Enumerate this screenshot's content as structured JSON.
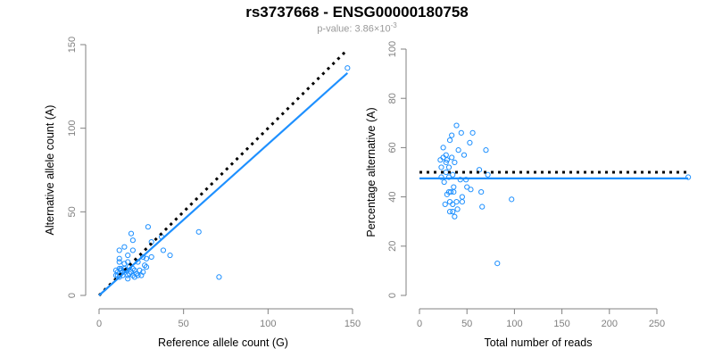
{
  "title": "rs3737668 - ENSG00000180758",
  "subtitle": {
    "prefix": "p-value: 3.86×10",
    "exponent": "-3"
  },
  "colors": {
    "points": "#1E90FF",
    "fit_line": "#1E90FF",
    "reference_line": "#000000",
    "axis": "#808080"
  },
  "chart_data": [
    {
      "type": "scatter",
      "xlabel": "Reference allele count (G)",
      "ylabel": "Alternative allele count (A)",
      "xlim": [
        0,
        150
      ],
      "ylim": [
        0,
        150
      ],
      "xticks": [
        0,
        50,
        100,
        150
      ],
      "yticks": [
        0,
        50,
        100,
        150
      ],
      "reference_line": {
        "style": "dotted",
        "slope": 1,
        "intercept": 0,
        "x_range": [
          0,
          147
        ]
      },
      "fit_line": {
        "slope": 0.905,
        "intercept": 0,
        "x_range": [
          0,
          147
        ]
      },
      "points": [
        [
          29,
          41
        ],
        [
          19,
          37
        ],
        [
          20,
          33
        ],
        [
          59,
          38
        ],
        [
          71,
          11
        ],
        [
          12,
          27
        ],
        [
          15,
          29
        ],
        [
          20,
          27
        ],
        [
          31,
          32
        ],
        [
          37,
          35
        ],
        [
          38,
          27
        ],
        [
          42,
          24
        ],
        [
          31,
          23
        ],
        [
          17,
          24
        ],
        [
          12,
          22
        ],
        [
          12,
          20
        ],
        [
          17,
          20
        ],
        [
          23,
          20
        ],
        [
          28,
          22
        ],
        [
          26,
          23
        ],
        [
          28,
          17
        ],
        [
          15,
          19
        ],
        [
          26,
          14
        ],
        [
          25,
          12
        ],
        [
          21,
          11
        ],
        [
          17,
          10
        ],
        [
          10,
          12
        ],
        [
          147,
          136
        ],
        [
          10,
          15
        ],
        [
          11,
          14
        ],
        [
          12,
          16
        ],
        [
          13,
          15
        ],
        [
          14,
          14
        ],
        [
          15,
          16
        ],
        [
          16,
          15
        ],
        [
          18,
          13
        ],
        [
          19,
          14
        ],
        [
          20,
          16
        ],
        [
          21,
          15
        ],
        [
          22,
          13
        ],
        [
          12,
          11
        ],
        [
          14,
          12
        ],
        [
          17,
          12
        ],
        [
          20,
          12
        ],
        [
          23,
          12
        ],
        [
          11,
          12
        ],
        [
          13,
          16
        ],
        [
          18,
          17
        ],
        [
          24,
          15
        ],
        [
          27,
          18
        ]
      ]
    },
    {
      "type": "scatter",
      "xlabel": "Total number of reads",
      "ylabel": "Percentage alternative (A)",
      "xlim": [
        0,
        283
      ],
      "ylim": [
        0,
        100
      ],
      "xticks": [
        0,
        50,
        100,
        150,
        200,
        250
      ],
      "yticks": [
        0,
        20,
        40,
        60,
        80,
        100
      ],
      "reference_line": {
        "style": "dotted",
        "y": 50
      },
      "fit_line": {
        "y": 47.5
      },
      "points": [
        [
          70,
          59
        ],
        [
          56,
          66
        ],
        [
          53,
          62
        ],
        [
          97,
          39
        ],
        [
          82,
          13
        ],
        [
          39,
          69
        ],
        [
          44,
          66
        ],
        [
          47,
          57
        ],
        [
          63,
          51
        ],
        [
          72,
          49
        ],
        [
          65,
          42
        ],
        [
          66,
          36
        ],
        [
          54,
          43
        ],
        [
          41,
          59
        ],
        [
          34,
          65
        ],
        [
          32,
          63
        ],
        [
          37,
          54
        ],
        [
          43,
          47
        ],
        [
          50,
          44
        ],
        [
          49,
          47
        ],
        [
          45,
          38
        ],
        [
          34,
          56
        ],
        [
          40,
          35
        ],
        [
          37,
          32
        ],
        [
          32,
          34
        ],
        [
          27,
          37
        ],
        [
          22,
          55
        ],
        [
          283,
          48
        ],
        [
          25,
          60
        ],
        [
          25,
          56
        ],
        [
          28,
          57
        ],
        [
          28,
          54
        ],
        [
          28,
          50
        ],
        [
          31,
          52
        ],
        [
          31,
          48
        ],
        [
          31,
          42
        ],
        [
          33,
          42
        ],
        [
          36,
          44
        ],
        [
          36,
          42
        ],
        [
          35,
          37
        ],
        [
          23,
          48
        ],
        [
          26,
          46
        ],
        [
          29,
          41
        ],
        [
          32,
          38
        ],
        [
          35,
          34
        ],
        [
          23,
          52
        ],
        [
          29,
          55
        ],
        [
          35,
          49
        ],
        [
          39,
          38
        ],
        [
          45,
          40
        ]
      ]
    }
  ]
}
